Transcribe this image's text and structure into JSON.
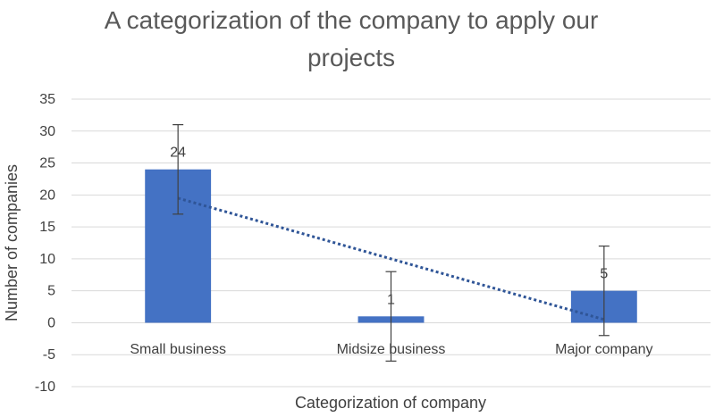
{
  "chart_data": {
    "type": "bar",
    "title_lines": [
      "A categorization of the company to apply our",
      "projects"
    ],
    "xlabel": "Categorization of company",
    "ylabel": "Number of companies",
    "categories": [
      "Small business",
      "Midsize business",
      "Major company"
    ],
    "values": [
      24,
      1,
      5
    ],
    "data_labels": [
      "24",
      "1",
      "5"
    ],
    "error_bar": 7,
    "ylim": [
      -10,
      35
    ],
    "yticks": [
      35,
      30,
      25,
      20,
      15,
      10,
      5,
      0,
      -5,
      -10
    ],
    "grid": true,
    "legend": "none",
    "trendline": {
      "type": "linear",
      "style": "dotted"
    },
    "colors": {
      "bar": "#4472C4",
      "trendline": "#2F5597",
      "grid": "#D9D9D9",
      "error": "#404040"
    }
  }
}
